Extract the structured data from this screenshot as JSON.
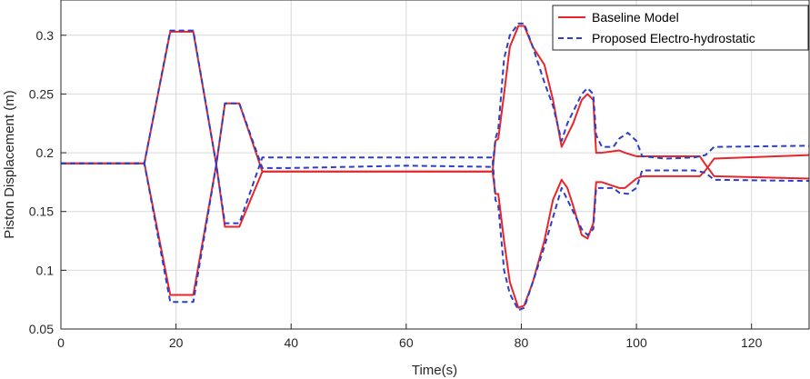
{
  "chart_data": {
    "type": "line",
    "title": "",
    "xlabel": "Time(s)",
    "ylabel": "Piston Displacement (m)",
    "xlim": [
      0,
      130
    ],
    "ylim": [
      0.05,
      0.33
    ],
    "xticks": [
      "0",
      "20",
      "40",
      "60",
      "80",
      "100",
      "120"
    ],
    "yticks": [
      "0.05",
      "0.1",
      "0.15",
      "0.2",
      "0.25",
      "0.3"
    ],
    "grid": true,
    "legend_position": "top-right",
    "series": [
      {
        "name": "Baseline Model",
        "color": "#e8252b",
        "style": "solid",
        "x": [
          0,
          14.5,
          19,
          23,
          27,
          28.5,
          31,
          35,
          40,
          60,
          75,
          75.5,
          76,
          77,
          78,
          79.5,
          80.5,
          82,
          84,
          85.5,
          87,
          88,
          89,
          90.5,
          91.5,
          92.5,
          93,
          94,
          97,
          98,
          100,
          101,
          110,
          111,
          112,
          113.5,
          130
        ],
        "values": [
          0.191,
          0.191,
          0.303,
          0.303,
          0.19,
          0.242,
          0.242,
          0.184,
          0.184,
          0.184,
          0.184,
          0.165,
          0.165,
          0.125,
          0.09,
          0.068,
          0.07,
          0.09,
          0.125,
          0.16,
          0.177,
          0.17,
          0.155,
          0.13,
          0.127,
          0.14,
          0.175,
          0.175,
          0.17,
          0.17,
          0.178,
          0.18,
          0.18,
          0.18,
          0.185,
          0.195,
          0.198
        ]
      },
      {
        "name": "Baseline Model",
        "color": "#e8252b",
        "style": "solid",
        "x": [
          0,
          14.5,
          19,
          23,
          27,
          28.5,
          31,
          35,
          40,
          60,
          75,
          75.5,
          76,
          77,
          78,
          79.5,
          80.5,
          82,
          84,
          85.5,
          87,
          88,
          89,
          90.5,
          91.5,
          92.5,
          93,
          94,
          97,
          98,
          100,
          101,
          110,
          111,
          112,
          113.5,
          130
        ],
        "values": [
          0.191,
          0.191,
          0.079,
          0.079,
          0.19,
          0.137,
          0.137,
          0.184,
          0.184,
          0.184,
          0.184,
          0.21,
          0.212,
          0.25,
          0.29,
          0.308,
          0.308,
          0.29,
          0.275,
          0.245,
          0.205,
          0.215,
          0.225,
          0.245,
          0.25,
          0.245,
          0.2,
          0.2,
          0.202,
          0.2,
          0.197,
          0.197,
          0.197,
          0.197,
          0.19,
          0.18,
          0.178
        ]
      },
      {
        "name": "Proposed Electro-hydrostatic",
        "color": "#2b3fc6",
        "style": "dashed",
        "x": [
          0,
          14.5,
          19,
          23,
          27,
          28.5,
          31,
          35,
          40,
          60,
          75,
          75.5,
          76,
          77,
          78,
          79.5,
          80.5,
          82,
          84,
          85.5,
          87,
          88,
          89,
          90.5,
          91.5,
          92.5,
          93,
          94,
          96,
          97,
          98.5,
          100,
          101,
          105,
          110,
          112,
          113.5,
          130
        ],
        "values": [
          0.191,
          0.191,
          0.304,
          0.304,
          0.19,
          0.242,
          0.242,
          0.187,
          0.187,
          0.189,
          0.188,
          0.212,
          0.22,
          0.28,
          0.3,
          0.31,
          0.31,
          0.29,
          0.26,
          0.24,
          0.21,
          0.225,
          0.235,
          0.25,
          0.255,
          0.25,
          0.215,
          0.205,
          0.205,
          0.212,
          0.217,
          0.21,
          0.197,
          0.195,
          0.196,
          0.198,
          0.205,
          0.206
        ]
      },
      {
        "name": "Proposed Electro-hydrostatic",
        "color": "#2b3fc6",
        "style": "dashed",
        "x": [
          0,
          14.5,
          19,
          23,
          27,
          28.5,
          31,
          35,
          40,
          60,
          75,
          75.5,
          76,
          77,
          78,
          79.5,
          80.5,
          82,
          84,
          85.5,
          87,
          88,
          89,
          90.5,
          91.5,
          92.5,
          93,
          94,
          96,
          97,
          98.5,
          100,
          101,
          105,
          110,
          112,
          113.5,
          130
        ],
        "values": [
          0.191,
          0.191,
          0.073,
          0.073,
          0.19,
          0.14,
          0.14,
          0.196,
          0.196,
          0.196,
          0.196,
          0.16,
          0.155,
          0.1,
          0.08,
          0.066,
          0.068,
          0.09,
          0.12,
          0.145,
          0.17,
          0.16,
          0.15,
          0.135,
          0.13,
          0.135,
          0.17,
          0.17,
          0.17,
          0.166,
          0.165,
          0.17,
          0.185,
          0.185,
          0.185,
          0.183,
          0.177,
          0.176
        ]
      }
    ],
    "legend": [
      {
        "label": "Baseline Model",
        "color": "#e8252b",
        "style": "solid"
      },
      {
        "label": "Proposed Electro-hydrostatic",
        "color": "#2b3fc6",
        "style": "dashed"
      }
    ]
  }
}
